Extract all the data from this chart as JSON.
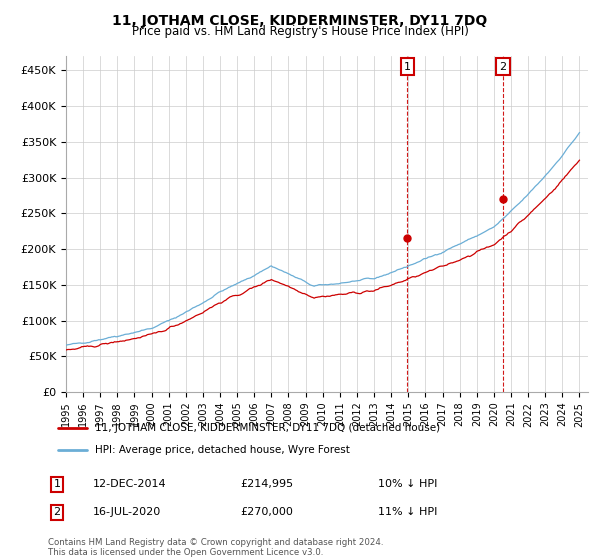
{
  "title": "11, JOTHAM CLOSE, KIDDERMINSTER, DY11 7DQ",
  "subtitle": "Price paid vs. HM Land Registry's House Price Index (HPI)",
  "ylim": [
    0,
    470000
  ],
  "yticks": [
    0,
    50000,
    100000,
    150000,
    200000,
    250000,
    300000,
    350000,
    400000,
    450000
  ],
  "ytick_labels": [
    "£0",
    "£50K",
    "£100K",
    "£150K",
    "£200K",
    "£250K",
    "£300K",
    "£350K",
    "£400K",
    "£450K"
  ],
  "sale1": {
    "date_label": "12-DEC-2014",
    "price": 214995,
    "x": 2014.95,
    "label": "10% ↓ HPI",
    "num": "1"
  },
  "sale2": {
    "date_label": "16-JUL-2020",
    "price": 270000,
    "x": 2020.54,
    "label": "11% ↓ HPI",
    "num": "2"
  },
  "hpi_color": "#6baed6",
  "price_color": "#cc0000",
  "vline_color": "#cc0000",
  "grid_color": "#cccccc",
  "legend1": "11, JOTHAM CLOSE, KIDDERMINSTER, DY11 7DQ (detached house)",
  "legend2": "HPI: Average price, detached house, Wyre Forest",
  "footnote": "Contains HM Land Registry data © Crown copyright and database right 2024.\nThis data is licensed under the Open Government Licence v3.0.",
  "background_color": "#ffffff"
}
